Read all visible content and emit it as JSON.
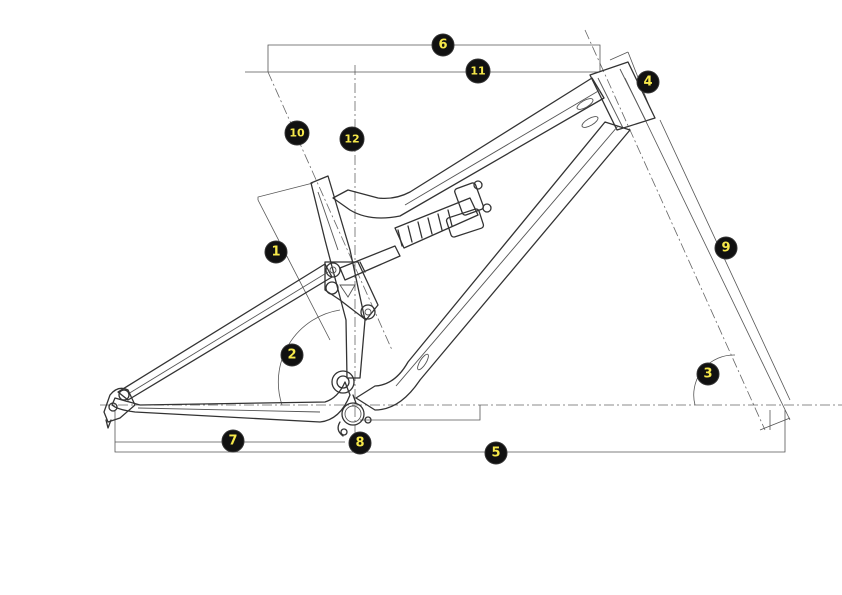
{
  "markers": [
    {
      "id": "marker-1",
      "label": "1"
    },
    {
      "id": "marker-2",
      "label": "2"
    },
    {
      "id": "marker-3",
      "label": "3"
    },
    {
      "id": "marker-4",
      "label": "4"
    },
    {
      "id": "marker-5",
      "label": "5"
    },
    {
      "id": "marker-6",
      "label": "6"
    },
    {
      "id": "marker-7",
      "label": "7"
    },
    {
      "id": "marker-8",
      "label": "8"
    },
    {
      "id": "marker-9",
      "label": "9"
    },
    {
      "id": "marker-10",
      "label": "10"
    },
    {
      "id": "marker-11",
      "label": "11"
    },
    {
      "id": "marker-12",
      "label": "12"
    }
  ],
  "colors": {
    "line": "#333333",
    "badge_fill": "#111111",
    "badge_text": "#f6e84a"
  }
}
